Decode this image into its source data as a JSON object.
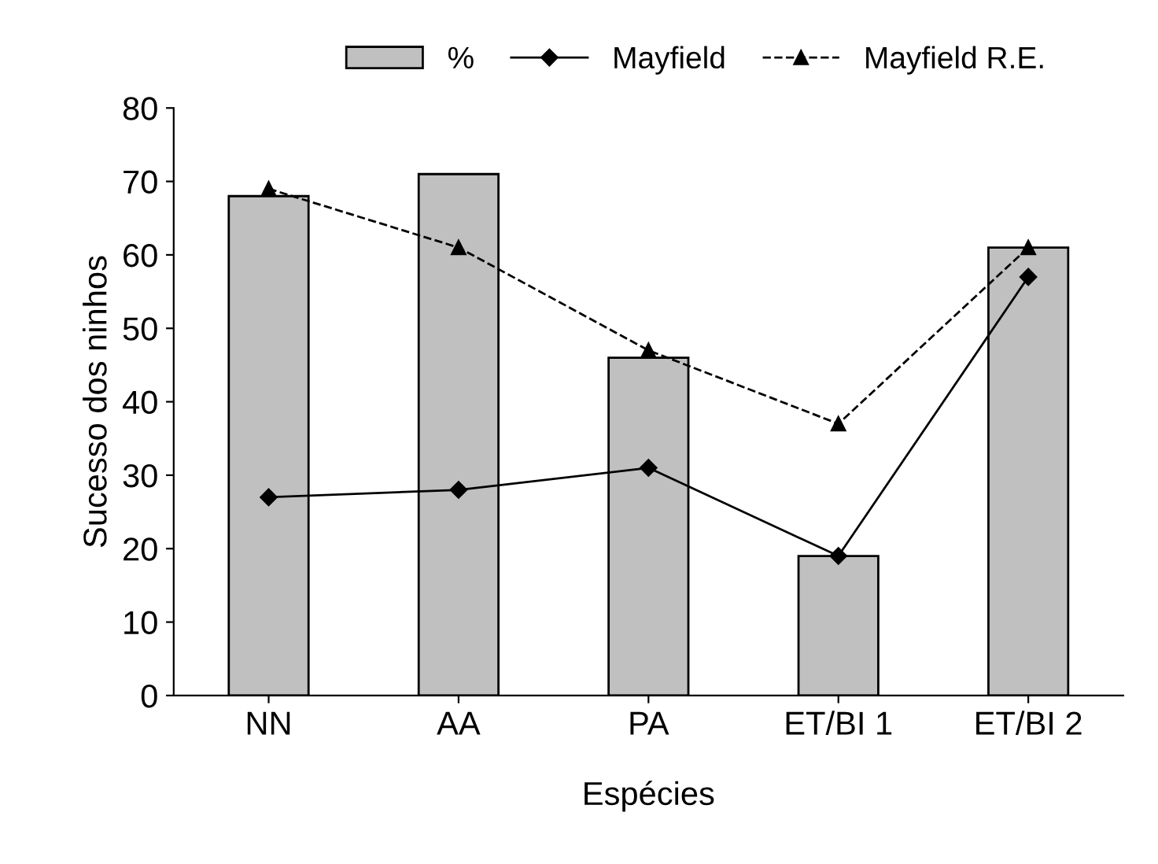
{
  "chart_data": {
    "type": "bar",
    "xlabel": "Espécies",
    "ylabel": "Sucesso dos ninhos",
    "categories": [
      "NN",
      "AA",
      "PA",
      "ET/BI 1",
      "ET/BI 2"
    ],
    "series": [
      {
        "name": "%",
        "color": "#c0c0c0",
        "values": [
          68,
          71,
          46,
          19,
          61
        ]
      },
      {
        "name": "Mayfield",
        "type": "line",
        "color": "#000000",
        "marker": "diamond",
        "line_style": "solid",
        "values": [
          27,
          28,
          31,
          19,
          57
        ]
      },
      {
        "name": "Mayfield R.E.",
        "type": "line",
        "color": "#000000",
        "marker": "triangle",
        "line_style": "dashed",
        "values": [
          69,
          61,
          47,
          37,
          61
        ]
      }
    ],
    "ylim": [
      0,
      80
    ],
    "yticks": [
      0,
      10,
      20,
      30,
      40,
      50,
      60,
      70,
      80
    ],
    "grid": false,
    "legend": "top"
  }
}
